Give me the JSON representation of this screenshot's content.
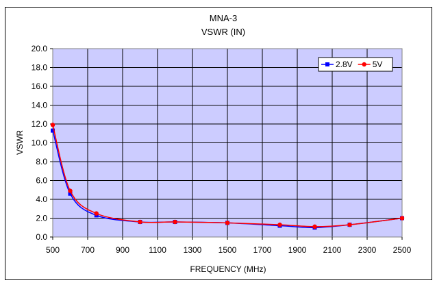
{
  "chart_data": {
    "type": "line",
    "title": "MNA-3",
    "subtitle": "VSWR (IN)",
    "xlabel": "FREQUENCY (MHz)",
    "ylabel": "VSWR",
    "xlim": [
      500,
      2500
    ],
    "ylim": [
      0,
      20
    ],
    "xticks": [
      500,
      700,
      900,
      1100,
      1300,
      1500,
      1700,
      1900,
      2100,
      2300,
      2500
    ],
    "yticks": [
      0.0,
      2.0,
      4.0,
      6.0,
      8.0,
      10.0,
      12.0,
      14.0,
      16.0,
      18.0,
      20.0
    ],
    "xtick_labels": [
      "500",
      "700",
      "900",
      "1100",
      "1300",
      "1500",
      "1700",
      "1900",
      "2100",
      "2300",
      "2500"
    ],
    "ytick_labels": [
      "0.0",
      "2.0",
      "4.0",
      "6.0",
      "8.0",
      "10.0",
      "12.0",
      "14.0",
      "16.0",
      "18.0",
      "20.0"
    ],
    "grid": true,
    "legend_position": "top-right",
    "plot_background": "#ccccff",
    "series": [
      {
        "name": "2.8V",
        "color": "#0000ff",
        "marker": "square",
        "x": [
          500,
          600,
          750,
          1000,
          1200,
          1500,
          1800,
          2000,
          2200,
          2500
        ],
        "y": [
          11.3,
          4.6,
          2.3,
          1.6,
          1.6,
          1.5,
          1.2,
          1.0,
          1.3,
          2.0
        ]
      },
      {
        "name": "5V",
        "color": "#ff0000",
        "marker": "circle",
        "x": [
          500,
          600,
          750,
          1000,
          1200,
          1500,
          1800,
          2000,
          2200,
          2500
        ],
        "y": [
          11.9,
          4.9,
          2.5,
          1.6,
          1.6,
          1.5,
          1.3,
          1.1,
          1.3,
          2.0
        ]
      }
    ]
  }
}
